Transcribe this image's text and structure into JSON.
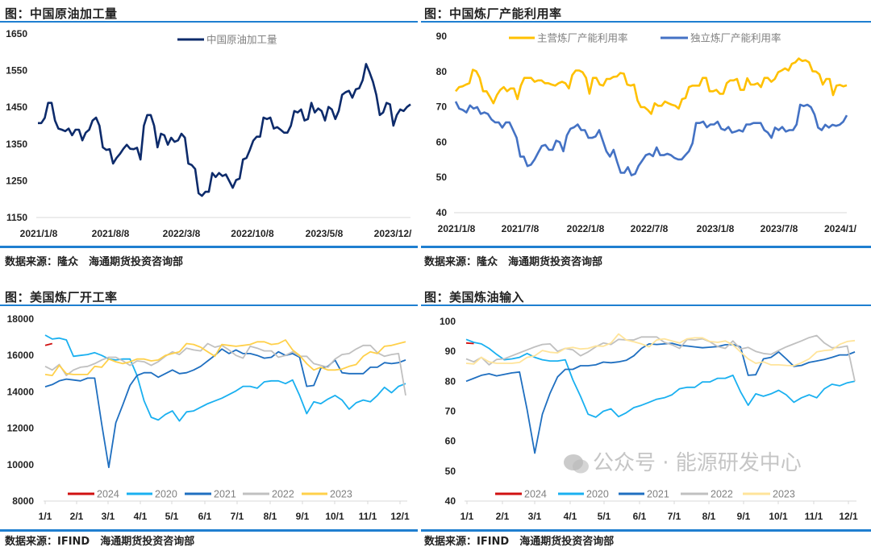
{
  "panels": [
    {
      "title": "图：中国原油加工量",
      "source": "数据来源：隆众　海通期货投资咨询部"
    },
    {
      "title": "图：中国炼厂产能利用率",
      "source": "数据来源：隆众　海通期货投资咨询部"
    },
    {
      "title": "图：美国炼厂开工率",
      "source": "数据来源：IFIND　海通期货投资咨询部"
    },
    {
      "title": "图：美国炼油输入",
      "source": "数据来源：IFIND　海通期货投资咨询部"
    }
  ],
  "watermark": "公众号 · 能源研发中心",
  "chart_data": [
    {
      "type": "line",
      "title": "中国原油加工量",
      "ylim": [
        1150,
        1650
      ],
      "yticks": [
        "1150",
        "1250",
        "1350",
        "1450",
        "1550",
        "1650"
      ],
      "xticks": [
        "2021/1/8",
        "2021/8/8",
        "2022/3/8",
        "2022/10/8",
        "2023/5/8",
        "2023/12/"
      ],
      "legend": "top-center",
      "grid": false,
      "series": [
        {
          "name": "中国原油加工量",
          "color": "#0d2b6b",
          "values": [
            1407,
            1407,
            1421,
            1462,
            1462,
            1414,
            1392,
            1389,
            1385,
            1392,
            1374,
            1389,
            1389,
            1360,
            1381,
            1389,
            1414,
            1422,
            1400,
            1341,
            1334,
            1336,
            1297,
            1312,
            1323,
            1337,
            1348,
            1337,
            1336,
            1340,
            1308,
            1400,
            1429,
            1429,
            1400,
            1341,
            1378,
            1374,
            1348,
            1367,
            1356,
            1360,
            1378,
            1367,
            1297,
            1293,
            1282,
            1216,
            1209,
            1220,
            1220,
            1271,
            1260,
            1271,
            1263,
            1267,
            1249,
            1231,
            1252,
            1256,
            1308,
            1312,
            1334,
            1359,
            1370,
            1370,
            1422,
            1418,
            1422,
            1392,
            1396,
            1389,
            1381,
            1381,
            1400,
            1440,
            1436,
            1444,
            1414,
            1418,
            1462,
            1436,
            1447,
            1440,
            1414,
            1451,
            1444,
            1418,
            1440,
            1484,
            1491,
            1495,
            1476,
            1499,
            1502,
            1524,
            1568,
            1546,
            1520,
            1484,
            1429,
            1436,
            1462,
            1458,
            1400,
            1429,
            1444,
            1440,
            1451,
            1458
          ]
        }
      ]
    },
    {
      "type": "line",
      "title": "中国炼厂产能利用率",
      "ylim": [
        40,
        90
      ],
      "yticks": [
        "40",
        "50",
        "60",
        "70",
        "80",
        "90"
      ],
      "xticks": [
        "2021/1/8",
        "2021/7/8",
        "2022/1/8",
        "2022/7/8",
        "2023/1/8",
        "2023/7/8",
        "2024/1/"
      ],
      "legend": "top-center",
      "grid": false,
      "series": [
        {
          "name": "主营炼厂产能利用率",
          "color": "#ffc000",
          "values": [
            74.4,
            75.6,
            75.8,
            76.3,
            76.7,
            80.5,
            80.1,
            78.2,
            74.4,
            74.4,
            72.8,
            71,
            73.3,
            74.8,
            75.6,
            74.4,
            75.2,
            75.2,
            72.2,
            76,
            78.2,
            78.2,
            78.2,
            77.1,
            77.5,
            77.5,
            76.7,
            76.7,
            76.3,
            76,
            76.7,
            77.1,
            76.7,
            75.2,
            79,
            80.3,
            80.3,
            79.8,
            78.2,
            73.7,
            78.2,
            78.2,
            76.3,
            76,
            77.9,
            77.9,
            78.5,
            78.6,
            79.6,
            79.4,
            76.3,
            76,
            76.3,
            71.8,
            69.9,
            69.9,
            69.1,
            68,
            71,
            70.3,
            70.3,
            71.5,
            71,
            70.6,
            70.3,
            69.5,
            72.2,
            72.5,
            75.6,
            76,
            76,
            76,
            78.2,
            78.2,
            74.4,
            74.4,
            74.8,
            73.7,
            73.7,
            76.7,
            77.5,
            77.5,
            77.9,
            74.8,
            74.8,
            78.1,
            76.3,
            76.3,
            76.7,
            75.6,
            78.2,
            78.2,
            77.1,
            77.9,
            79.8,
            80.3,
            80.9,
            80.3,
            82.2,
            82.6,
            83.7,
            83,
            83.2,
            82.6,
            80.1,
            80,
            79.2,
            76.3,
            77.9,
            77.9,
            73.3,
            76,
            76.2,
            75.8,
            76.1
          ]
        },
        {
          "name": "独立炼厂产能利用率",
          "color": "#4472c4",
          "values": [
            71.5,
            69.5,
            69.1,
            68.4,
            70.4,
            69.5,
            69.9,
            68,
            68.4,
            68,
            66.4,
            65.6,
            65.6,
            64.1,
            65.6,
            65.6,
            63.4,
            61.2,
            55.9,
            55.9,
            53.2,
            53.6,
            55.1,
            57,
            58.9,
            59.2,
            57.8,
            57.8,
            60.4,
            60,
            57.4,
            61.9,
            63.8,
            64.2,
            65,
            63.4,
            63.4,
            61.2,
            61.2,
            61.6,
            63.4,
            60.4,
            57.4,
            55.9,
            57.8,
            54.4,
            51.3,
            51.3,
            52.9,
            50.6,
            51,
            53.3,
            54.8,
            56.3,
            56.7,
            56,
            58.5,
            56.3,
            56.3,
            56.7,
            56.3,
            55.5,
            55.1,
            55.1,
            56.3,
            57.4,
            59.7,
            65.4,
            65.4,
            65.8,
            64.2,
            65,
            65,
            65.8,
            63.8,
            63.4,
            64.3,
            62.7,
            63,
            63.4,
            63,
            65,
            65,
            65.4,
            65.4,
            65.4,
            63.4,
            62.7,
            61.2,
            64.1,
            63.4,
            64.3,
            63,
            63.4,
            63.4,
            65,
            70.6,
            70.2,
            70.6,
            69.9,
            67.8,
            64.1,
            63.4,
            64.9,
            64.1,
            64.9,
            64.6,
            64.9,
            65.8,
            67.6
          ]
        }
      ]
    },
    {
      "type": "line",
      "title": "美国炼厂开工率",
      "ylim": [
        8000,
        18000
      ],
      "yticks": [
        "8000",
        "10000",
        "12000",
        "14000",
        "16000",
        "18000"
      ],
      "xticks": [
        "1/1",
        "2/1",
        "3/1",
        "4/1",
        "5/1",
        "6/1",
        "7/1",
        "8/1",
        "9/1",
        "10/1",
        "11/1",
        "12/1"
      ],
      "legend": "bottom",
      "grid": false,
      "series": [
        {
          "name": "2024",
          "color": "#d01010",
          "values": [
            16550,
            16650
          ]
        },
        {
          "name": "2020",
          "color": "#1ab0f0",
          "values": [
            17115,
            16900,
            16950,
            16850,
            15950,
            16000,
            16050,
            16150,
            16000,
            15800,
            15750,
            15800,
            15800,
            14900,
            13500,
            12600,
            12450,
            12750,
            12950,
            12400,
            12900,
            12950,
            13150,
            13350,
            13500,
            13650,
            13850,
            14050,
            14300,
            14300,
            14200,
            14550,
            14600,
            14600,
            14450,
            14650,
            13800,
            12800,
            13450,
            13350,
            13600,
            13800,
            13550,
            13050,
            13400,
            13550,
            13450,
            13800,
            14250,
            13950,
            14300,
            14450
          ]
        },
        {
          "name": "2021",
          "color": "#1f6fc0",
          "values": [
            14280,
            14400,
            14600,
            14700,
            14650,
            14600,
            14750,
            14750,
            12230,
            9850,
            12300,
            13300,
            14350,
            14900,
            15050,
            15050,
            14800,
            15000,
            15200,
            15000,
            15050,
            15200,
            15400,
            15700,
            16000,
            16350,
            16100,
            16300,
            16100,
            16100,
            16000,
            15850,
            15900,
            16200,
            16000,
            16100,
            15900,
            14300,
            14350,
            15300,
            15400,
            15750,
            15050,
            15000,
            15000,
            15000,
            15350,
            15350,
            15600,
            15550,
            15600,
            15750
          ]
        },
        {
          "name": "2022",
          "color": "#c0c0c0",
          "values": [
            15400,
            15200,
            15500,
            14900,
            15200,
            15350,
            15400,
            15550,
            15750,
            15900,
            15900,
            15700,
            15450,
            15700,
            15650,
            15450,
            15650,
            15950,
            16200,
            16050,
            16400,
            16300,
            16250,
            16650,
            16450,
            16550,
            16300,
            16000,
            15850,
            16500,
            16400,
            16250,
            16250,
            15900,
            16000,
            16200,
            15950,
            15950,
            15550,
            15450,
            15350,
            15800,
            16050,
            16100,
            16350,
            16550,
            16550,
            16150,
            15950,
            16050,
            16100,
            13800
          ]
        },
        {
          "name": "2023",
          "color": "#ffd04a",
          "values": [
            14950,
            14900,
            15450,
            15000,
            14950,
            14950,
            14950,
            15400,
            15350,
            15800,
            15650,
            15550,
            15650,
            15800,
            15800,
            15700,
            15750,
            16000,
            16100,
            16200,
            16650,
            16600,
            16450,
            16200,
            15950,
            16600,
            16550,
            16500,
            16550,
            16600,
            16750,
            16750,
            16600,
            16650,
            16850,
            16300,
            16000,
            15550,
            15200,
            15350,
            15200,
            15200,
            15250,
            15400,
            15500,
            15950,
            16200,
            16100,
            16500,
            16550,
            16650,
            16750
          ]
        }
      ]
    },
    {
      "type": "line",
      "title": "美国炼油输入",
      "ylim": [
        40,
        100
      ],
      "yticks": [
        "40",
        "50",
        "60",
        "70",
        "80",
        "90",
        "100"
      ],
      "xticks": [
        "1/1",
        "2/1",
        "3/1",
        "4/1",
        "5/1",
        "6/1",
        "7/1",
        "8/1",
        "9/1",
        "10/1",
        "11/1",
        "12/1"
      ],
      "legend": "bottom",
      "grid": false,
      "series": [
        {
          "name": "2024",
          "color": "#d01010",
          "values": [
            92.8,
            92.6
          ]
        },
        {
          "name": "2020",
          "color": "#1ab0f0",
          "values": [
            94,
            93,
            92.5,
            91,
            89,
            87.2,
            87.5,
            88,
            89.3,
            88,
            87.2,
            86.8,
            86.8,
            87.2,
            80.5,
            75,
            69,
            68,
            70,
            70.8,
            68.2,
            69.5,
            71.2,
            72,
            73,
            74,
            74.5,
            75.5,
            77.5,
            78,
            78,
            79.8,
            79.8,
            81,
            81,
            82,
            76.5,
            72,
            75.8,
            75,
            75.8,
            77,
            75.5,
            73,
            74.5,
            75.5,
            74.5,
            77.5,
            79,
            78.5,
            79.5,
            80
          ]
        },
        {
          "name": "2021",
          "color": "#1f6fc0",
          "values": [
            80,
            81,
            82,
            82.5,
            81.8,
            82.3,
            82.8,
            83.1,
            70.5,
            56,
            69,
            76,
            81.5,
            84,
            84,
            85.2,
            85.2,
            85.5,
            86.4,
            86.2,
            86.5,
            87,
            88.5,
            91,
            92.5,
            92.3,
            92.5,
            92.7,
            92,
            91.8,
            91.5,
            91.2,
            91.4,
            91.6,
            92.2,
            92.3,
            91.5,
            82,
            82.2,
            87.5,
            88,
            89.8,
            87.5,
            85,
            85.3,
            86.3,
            86.8,
            87.3,
            88,
            88.8,
            88.8,
            89.8
          ]
        },
        {
          "name": "2022",
          "color": "#c0c0c0",
          "values": [
            87.5,
            86.5,
            88,
            85.5,
            87.3,
            87.5,
            88.5,
            89.5,
            90.5,
            91.5,
            92.3,
            92.5,
            90,
            91,
            90.5,
            88.5,
            89.8,
            91.5,
            92.8,
            92.3,
            94,
            93.8,
            93.8,
            94.8,
            94.8,
            94.8,
            93,
            92.2,
            91,
            94,
            93.8,
            94.2,
            93.2,
            91.6,
            91,
            93.5,
            90.8,
            91.3,
            90,
            89.3,
            89,
            90.3,
            91.5,
            92.5,
            93.5,
            94.6,
            95.3,
            92.8,
            91.2,
            91.3,
            91.8,
            80
          ]
        },
        {
          "name": "2023",
          "color": "#ffe49a",
          "values": [
            86,
            85.8,
            88,
            86.5,
            86,
            86,
            86,
            86.3,
            88,
            88.5,
            90.3,
            89.7,
            89.5,
            91,
            91.3,
            90.8,
            91,
            91.8,
            91.7,
            92.8,
            95.8,
            93.8,
            93.2,
            92.5,
            91.5,
            93.8,
            94.2,
            93.5,
            92.8,
            94.2,
            94.5,
            94.5,
            93.3,
            93,
            93.5,
            92.2,
            89.8,
            87.5,
            86,
            86.5,
            85.5,
            85.5,
            85.3,
            85.2,
            86.2,
            87.5,
            89.8,
            90.3,
            90.5,
            92.3,
            93.3,
            93.6
          ]
        }
      ]
    }
  ]
}
